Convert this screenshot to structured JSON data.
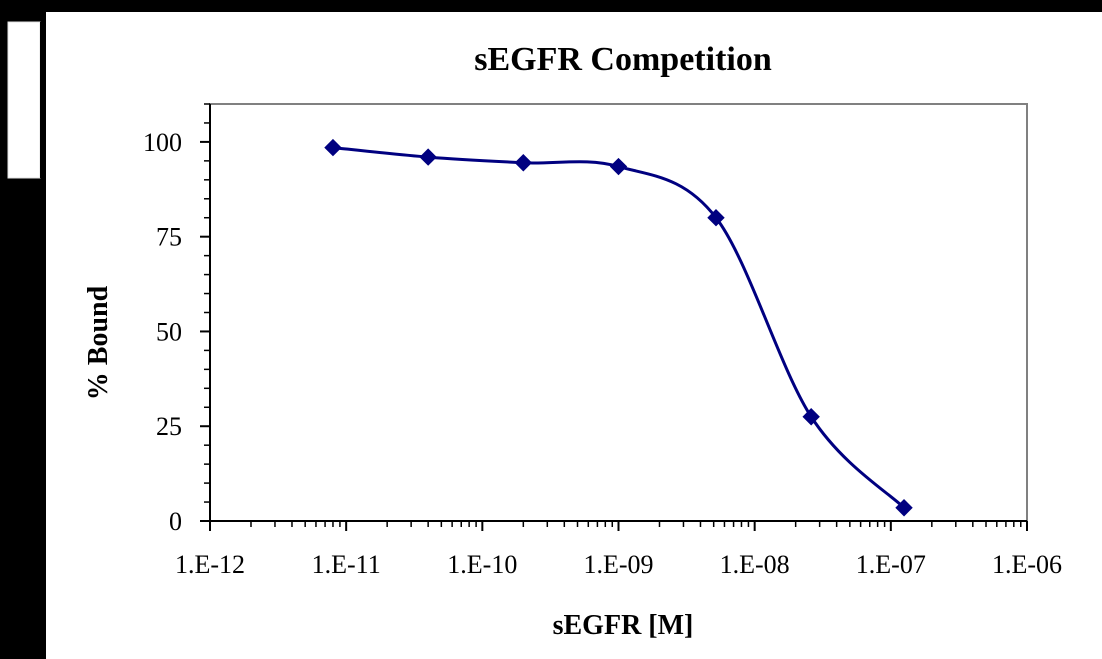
{
  "chart_data": {
    "type": "line",
    "title": "sEGFR Competition",
    "xlabel": "sEGFR [M]",
    "ylabel": "% Bound",
    "x_scale": "log",
    "xlim": [
      1e-12,
      1e-06
    ],
    "ylim": [
      0,
      110
    ],
    "x_tick_labels": [
      "1.E-12",
      "1.E-11",
      "1.E-10",
      "1.E-09",
      "1.E-08",
      "1.E-07",
      "1.E-06"
    ],
    "y_tick_labels": [
      "0",
      "25",
      "50",
      "75",
      "100"
    ],
    "grid": false,
    "legend": "none",
    "series": [
      {
        "x": [
          8e-12,
          4e-11,
          2e-10,
          1e-09,
          5.2e-09,
          2.6e-08,
          1.25e-07
        ],
        "y": [
          98.5,
          96,
          94.5,
          93.5,
          80,
          27.5,
          3.5
        ],
        "color": "#000080",
        "marker": "diamond",
        "smooth": true
      }
    ]
  }
}
